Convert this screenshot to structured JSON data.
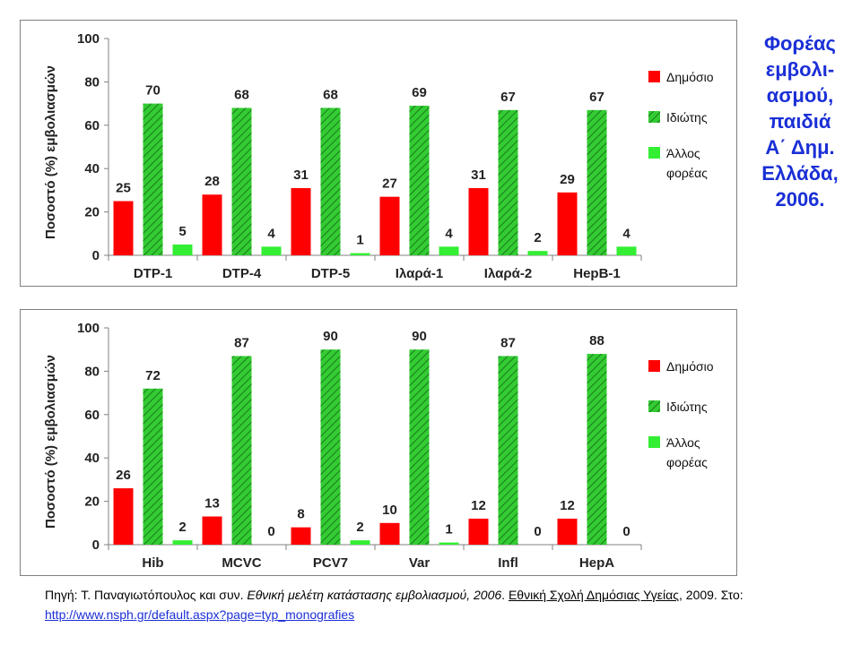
{
  "title_lines": [
    "Φορέας",
    "εμβολι-",
    "ασμού,",
    "παιδιά",
    "Α΄ Δημ.",
    "Ελλάδα,",
    "2006."
  ],
  "source": {
    "prefix": "Πηγή: Τ. Παναγιωτόπουλος και συν. ",
    "study": "Εθνική μελέτη κατάστασης εμβολιασμού, 2006",
    "sep1": ". ",
    "school": "Εθνική Σχολή Δημόσιας Υγείας",
    "mid": ", 2009. Στο: ",
    "url": "http://www.nsph.gr/default.aspx?page=typ_monografies"
  },
  "colors": {
    "public": "#ff0000",
    "private": "#33cc33",
    "private_hatch": "#1a7a1a",
    "other": "#33ee33"
  },
  "chart_data": [
    {
      "type": "bar",
      "ylabel": "Ποσοστό (%) εμβολιασμών",
      "ylim": [
        0,
        100
      ],
      "yticks": [
        0,
        20,
        40,
        60,
        80,
        100
      ],
      "legend_position": "right",
      "categories": [
        "DTP-1",
        "DTP-4",
        "DTP-5",
        "Ιλαρά-1",
        "Ιλαρά-2",
        "HepB-1"
      ],
      "series": [
        {
          "name": "Δημόσιο",
          "values": [
            25,
            28,
            31,
            27,
            31,
            29
          ],
          "labels": [
            "25",
            "28",
            "31",
            "27",
            "31",
            "29"
          ]
        },
        {
          "name": "Ιδιώτης",
          "values": [
            70,
            68,
            68,
            69,
            67,
            67
          ],
          "labels": [
            "70",
            "68",
            "68",
            "69",
            "67",
            "67"
          ]
        },
        {
          "name": "Άλλος φορέας",
          "name_lines": [
            "Άλλος",
            "φορέας"
          ],
          "values": [
            5,
            4,
            1,
            4,
            2,
            4
          ],
          "labels": [
            "5",
            "4",
            "1",
            "4",
            "2",
            "4"
          ]
        }
      ]
    },
    {
      "type": "bar",
      "ylabel": "Ποσοστό (%) εμβολιασμών",
      "ylim": [
        0,
        100
      ],
      "yticks": [
        0,
        20,
        40,
        60,
        80,
        100
      ],
      "legend_position": "right",
      "categories": [
        "Hib",
        "MCVC",
        "PCV7",
        "Var",
        "Infl",
        "HepA"
      ],
      "series": [
        {
          "name": "Δημόσιο",
          "values": [
            26,
            13,
            8,
            10,
            12,
            12
          ],
          "labels": [
            "26",
            "13",
            "8",
            "10",
            "12",
            "12"
          ]
        },
        {
          "name": "Ιδιώτης",
          "values": [
            72,
            87,
            90,
            90,
            87,
            88
          ],
          "labels": [
            "72",
            "87",
            "90",
            "90",
            "87",
            "88"
          ]
        },
        {
          "name": "Άλλος φορέας",
          "name_lines": [
            "Άλλος",
            "φορέας"
          ],
          "values": [
            2,
            0,
            2,
            1,
            0,
            0
          ],
          "labels": [
            "2",
            "0",
            "2",
            "1",
            "0",
            "0"
          ]
        }
      ]
    }
  ]
}
